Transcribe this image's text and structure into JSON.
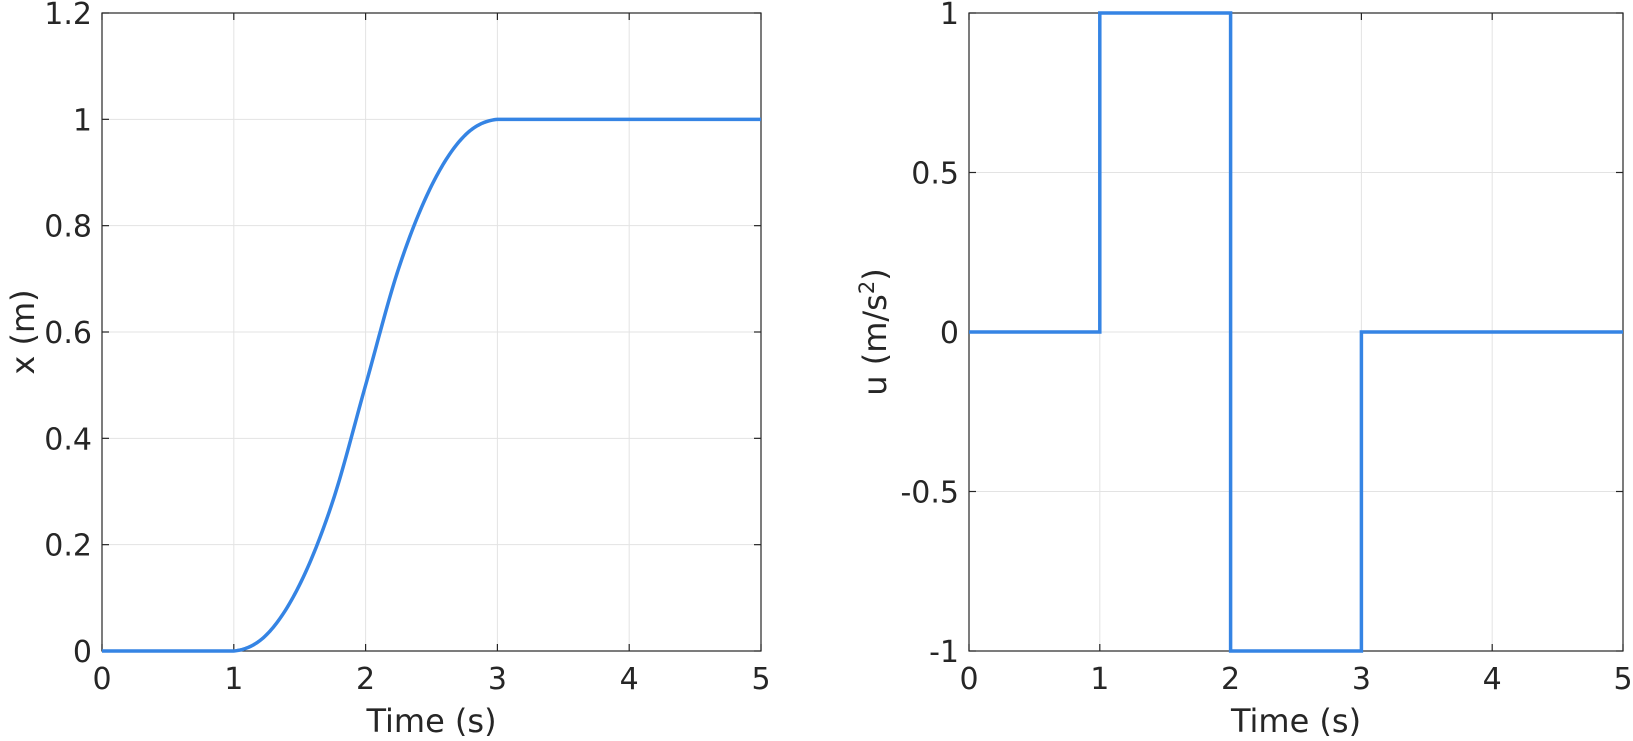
{
  "chart_data": [
    {
      "type": "line",
      "xlabel": "Time (s)",
      "ylabel": "x (m)",
      "xlim": [
        0,
        5
      ],
      "ylim": [
        0,
        1.2
      ],
      "x_ticks": [
        "0",
        "1",
        "2",
        "3",
        "4",
        "5"
      ],
      "y_ticks": [
        "0",
        "0.2",
        "0.4",
        "0.6",
        "0.8",
        "1",
        "1.2"
      ],
      "grid": true,
      "color": "#3584e4",
      "series": [
        {
          "x": [
            0,
            1,
            1.25,
            1.5,
            1.75,
            2,
            2.25,
            2.5,
            2.75,
            3,
            4,
            5
          ],
          "values": [
            0,
            0,
            0.031,
            0.125,
            0.281,
            0.5,
            0.719,
            0.875,
            0.969,
            1,
            1,
            1
          ]
        }
      ]
    },
    {
      "type": "line",
      "xlabel": "Time (s)",
      "ylabel_main": "u (m/s",
      "ylabel_sup": "2",
      "ylabel_end": ")",
      "xlim": [
        0,
        5
      ],
      "ylim": [
        -1,
        1
      ],
      "x_ticks": [
        "0",
        "1",
        "2",
        "3",
        "4",
        "5"
      ],
      "y_ticks": [
        "-1",
        "-0.5",
        "0",
        "0.5",
        "1"
      ],
      "grid": true,
      "color": "#3584e4",
      "series": [
        {
          "x": [
            0,
            1,
            1,
            2,
            2,
            3,
            3,
            5
          ],
          "values": [
            0,
            0,
            1,
            1,
            -1,
            -1,
            0,
            0
          ]
        }
      ]
    }
  ]
}
